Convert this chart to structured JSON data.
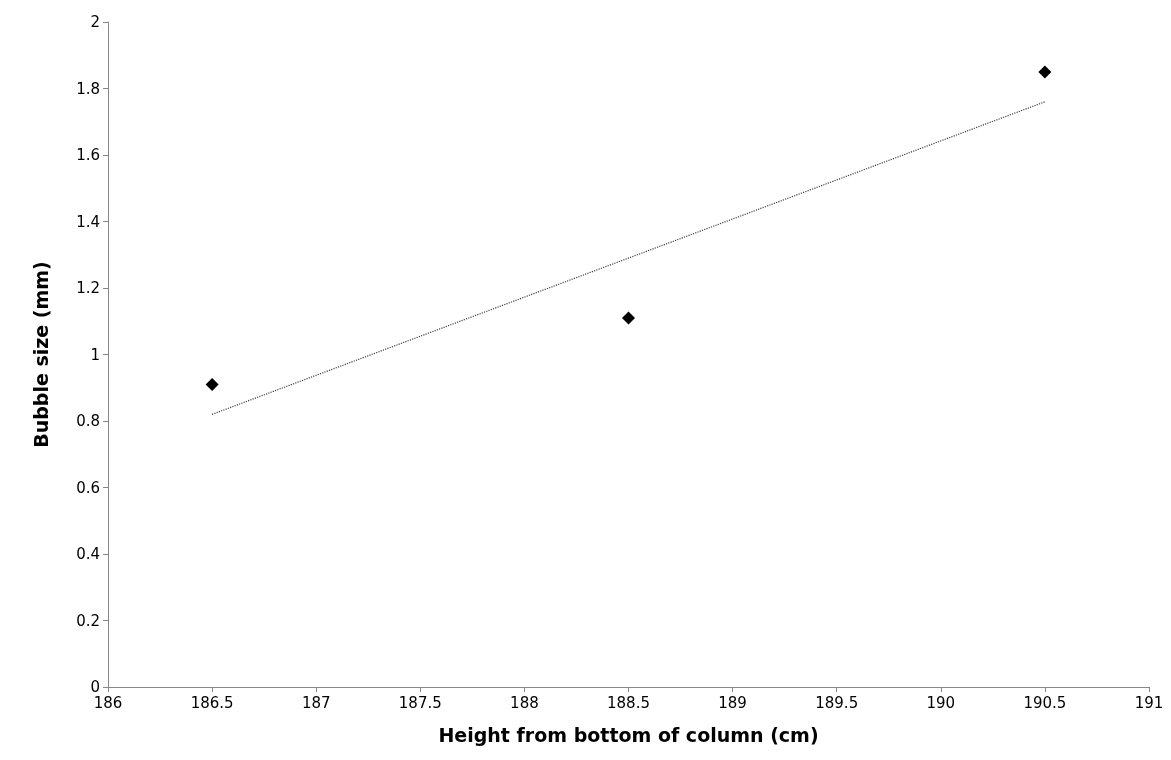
{
  "chart_data": {
    "type": "scatter",
    "xlabel": "Height from bottom of column (cm)",
    "ylabel": "Bubble size (mm)",
    "xlim": [
      186,
      191
    ],
    "xticks": [
      186,
      186.5,
      187,
      187.5,
      188,
      188.5,
      189,
      189.5,
      190,
      190.5,
      191
    ],
    "ylim": [
      0,
      2
    ],
    "yticks": [
      0,
      0.2,
      0.4,
      0.6,
      0.8,
      1,
      1.2,
      1.4,
      1.6,
      1.8,
      2
    ],
    "grid": false,
    "series": [
      {
        "color": "#000000",
        "marker": "diamond",
        "x": [
          186.5,
          188.5,
          190.5
        ],
        "values": [
          0.91,
          1.11,
          1.85
        ]
      },
      {
        "type": "line",
        "color": "#404040",
        "line_style": "dotted",
        "marker": "none",
        "x": [
          186.5,
          190.5
        ],
        "values": [
          0.82,
          1.76
        ]
      }
    ]
  }
}
